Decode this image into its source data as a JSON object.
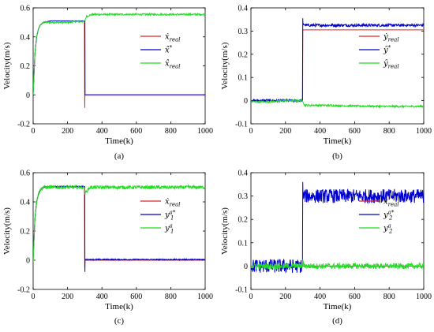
{
  "chart_data": [
    {
      "type": "line",
      "caption": "(a)",
      "xlabel": "Time(k)",
      "ylabel": "Velocity(m/s)",
      "xlim": [
        0,
        1000
      ],
      "ylim": [
        -0.2,
        0.6
      ],
      "xticks": [
        "0",
        "200",
        "400",
        "600",
        "800",
        "1000"
      ],
      "yticks": [
        "-0.2",
        "0",
        "0.2",
        "0.4",
        "0.6"
      ],
      "legend_position": "center-right",
      "series": [
        {
          "name": "ẋ_real",
          "legend": {
            "base": "ẋ",
            "sub": "real"
          },
          "color": "#d62728",
          "x": [
            0,
            10,
            20,
            30,
            40,
            50,
            60,
            80,
            100,
            150,
            200,
            250,
            298,
            300,
            301,
            1000
          ],
          "y": [
            0,
            0.28,
            0.4,
            0.45,
            0.48,
            0.49,
            0.5,
            0.505,
            0.51,
            0.51,
            0.51,
            0.51,
            0.51,
            -0.09,
            0,
            0
          ]
        },
        {
          "name": "x̂*",
          "legend": {
            "base": "x̂",
            "sup": "*"
          },
          "color": "#0000cc",
          "x": [
            0,
            10,
            20,
            30,
            40,
            50,
            60,
            80,
            100,
            150,
            200,
            250,
            298,
            301,
            302,
            1000
          ],
          "y": [
            0,
            0.28,
            0.4,
            0.45,
            0.48,
            0.49,
            0.5,
            0.505,
            0.51,
            0.51,
            0.51,
            0.51,
            0.51,
            0.51,
            0,
            0
          ]
        },
        {
          "name": "x̂_real",
          "legend": {
            "base": "x̂",
            "sub": "real"
          },
          "color": "#22dd22",
          "x": [
            0,
            10,
            20,
            30,
            40,
            50,
            60,
            80,
            100,
            150,
            200,
            250,
            298,
            310,
            330,
            350,
            400,
            600,
            800,
            1000
          ],
          "y": [
            0,
            0.28,
            0.4,
            0.45,
            0.48,
            0.49,
            0.5,
            0.5,
            0.5,
            0.5,
            0.5,
            0.505,
            0.505,
            0.54,
            0.55,
            0.555,
            0.555,
            0.555,
            0.555,
            0.555
          ],
          "noise": 0.006
        }
      ]
    },
    {
      "type": "line",
      "caption": "(b)",
      "xlabel": "Time(k)",
      "ylabel": "Velocity(m/s)",
      "xlim": [
        0,
        1000
      ],
      "ylim": [
        -0.1,
        0.4
      ],
      "xticks": [
        "0",
        "200",
        "400",
        "600",
        "800",
        "1000"
      ],
      "yticks": [
        "-0.1",
        "0",
        "0.1",
        "0.2",
        "0.3",
        "0.4"
      ],
      "legend_position": "center-right",
      "series": [
        {
          "name": "ẏ_real",
          "legend": {
            "base": "ẏ",
            "sub": "real"
          },
          "color": "#d62728",
          "x": [
            0,
            298,
            299,
            300,
            1000
          ],
          "y": [
            0,
            0,
            0,
            0.305,
            0.305
          ]
        },
        {
          "name": "ŷ*",
          "legend": {
            "base": "ŷ",
            "sup": "*"
          },
          "color": "#0000cc",
          "x": [
            0,
            298,
            300,
            301,
            320,
            1000
          ],
          "y": [
            0,
            0,
            0.355,
            0.33,
            0.325,
            0.325
          ],
          "noise": 0.006
        },
        {
          "name": "ŷ_real",
          "legend": {
            "base": "ŷ",
            "sub": "real"
          },
          "color": "#22dd22",
          "x": [
            0,
            100,
            200,
            300,
            310,
            400,
            600,
            800,
            1000
          ],
          "y": [
            -0.005,
            -0.005,
            0.0,
            0.0,
            -0.02,
            -0.02,
            -0.023,
            -0.025,
            -0.025
          ],
          "noise": 0.004
        }
      ]
    },
    {
      "type": "line",
      "caption": "(c)",
      "xlabel": "Time(k)",
      "ylabel": "Velocity(m/s)",
      "xlim": [
        0,
        1000
      ],
      "ylim": [
        -0.2,
        0.6
      ],
      "xticks": [
        "0",
        "200",
        "400",
        "600",
        "800",
        "1000"
      ],
      "yticks": [
        "-0.2",
        "0",
        "0.2",
        "0.4",
        "0.6"
      ],
      "legend_position": "center-right",
      "series": [
        {
          "name": "ẋ_real",
          "legend": {
            "base": "ẋ",
            "sub": "real"
          },
          "color": "#d62728",
          "x": [
            0,
            10,
            20,
            30,
            40,
            50,
            60,
            80,
            100,
            150,
            200,
            250,
            298,
            300,
            301,
            1000
          ],
          "y": [
            0,
            0.28,
            0.4,
            0.45,
            0.48,
            0.49,
            0.5,
            0.505,
            0.505,
            0.505,
            0.505,
            0.505,
            0.505,
            -0.05,
            0,
            0
          ]
        },
        {
          "name": "y1a*",
          "legend": {
            "base": "y",
            "sub": "1",
            "sup": "a*"
          },
          "color": "#0000cc",
          "x": [
            0,
            10,
            20,
            30,
            40,
            50,
            60,
            80,
            100,
            150,
            200,
            250,
            298,
            300,
            301,
            302,
            1000
          ],
          "y": [
            0,
            0.28,
            0.4,
            0.45,
            0.48,
            0.49,
            0.5,
            0.505,
            0.505,
            0.505,
            0.505,
            0.505,
            0.505,
            0.505,
            -0.08,
            0.005,
            0.005
          ],
          "noise": 0.004
        },
        {
          "name": "y1a",
          "legend": {
            "base": "y",
            "sub": "1",
            "sup": "a"
          },
          "color": "#22dd22",
          "x": [
            0,
            10,
            20,
            30,
            40,
            50,
            60,
            80,
            100,
            150,
            200,
            250,
            298,
            302,
            330,
            400,
            600,
            800,
            1000
          ],
          "y": [
            0,
            0.28,
            0.4,
            0.45,
            0.48,
            0.49,
            0.5,
            0.5,
            0.5,
            0.5,
            0.5,
            0.5,
            0.5,
            0.46,
            0.5,
            0.5,
            0.5,
            0.5,
            0.5
          ],
          "noise": 0.012
        }
      ]
    },
    {
      "type": "line",
      "caption": "(d)",
      "xlabel": "Time(k)",
      "ylabel": "Velocity(m/s)",
      "xlim": [
        0,
        1000
      ],
      "ylim": [
        -0.1,
        0.4
      ],
      "xticks": [
        "0",
        "200",
        "400",
        "600",
        "800",
        "1000"
      ],
      "yticks": [
        "-0.1",
        "0",
        "0.1",
        "0.2",
        "0.3",
        "0.4"
      ],
      "legend_position": "center-right",
      "series": [
        {
          "name": "ẋ_real",
          "legend": {
            "base": "ẋ",
            "sub": "real"
          },
          "color": "#d62728",
          "x": [
            0,
            1000
          ],
          "y": [
            0,
            0
          ]
        },
        {
          "name": "y2a*",
          "legend": {
            "base": "y",
            "sub": "2",
            "sup": "a*"
          },
          "color": "#0000cc",
          "x": [
            0,
            298,
            300,
            301,
            320,
            1000
          ],
          "y": [
            0,
            0,
            0.36,
            0.3,
            0.3,
            0.3
          ],
          "noise": 0.03
        },
        {
          "name": "y2a",
          "legend": {
            "base": "y",
            "sub": "2",
            "sup": "a"
          },
          "color": "#22dd22",
          "x": [
            0,
            298,
            300,
            305,
            320,
            1000
          ],
          "y": [
            0,
            0,
            0.02,
            0.005,
            0,
            0
          ],
          "noise": 0.012
        }
      ]
    }
  ]
}
